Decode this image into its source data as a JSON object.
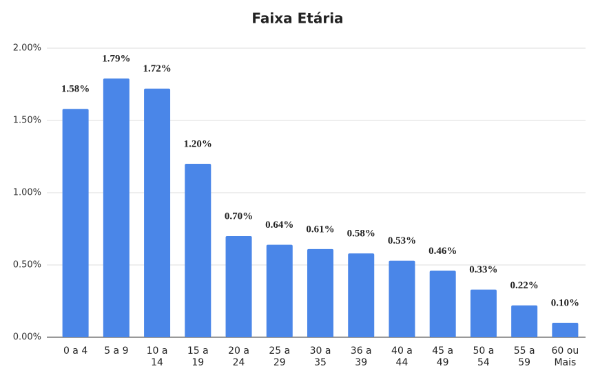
{
  "chart_data": {
    "type": "bar",
    "title": "Faixa Etária",
    "categories": [
      "0 a 4",
      "5 a 9",
      "10 a 14",
      "15 a 19",
      "20 a 24",
      "25 a 29",
      "30 a 35",
      "36 a 39",
      "40 a 44",
      "45 a 49",
      "50 a 54",
      "55 a 59",
      "60 ou Mais"
    ],
    "values": [
      1.58,
      1.79,
      1.72,
      1.2,
      0.7,
      0.64,
      0.61,
      0.58,
      0.53,
      0.46,
      0.33,
      0.22,
      0.1
    ],
    "value_labels": [
      "1.58%",
      "1.79%",
      "1.72%",
      "1.20%",
      "0.70%",
      "0.64%",
      "0.61%",
      "0.58%",
      "0.53%",
      "0.46%",
      "0.33%",
      "0.22%",
      "0.10%"
    ],
    "color": "#4a86e8",
    "ylim": [
      0,
      2
    ],
    "yticks": [
      {
        "value": 0,
        "label": "0.00%"
      },
      {
        "value": 0.5,
        "label": "0.50%"
      },
      {
        "value": 1,
        "label": "1.00%"
      },
      {
        "value": 1.5,
        "label": "1.50%"
      },
      {
        "value": 2,
        "label": "2.00%"
      }
    ],
    "grid": true
  }
}
